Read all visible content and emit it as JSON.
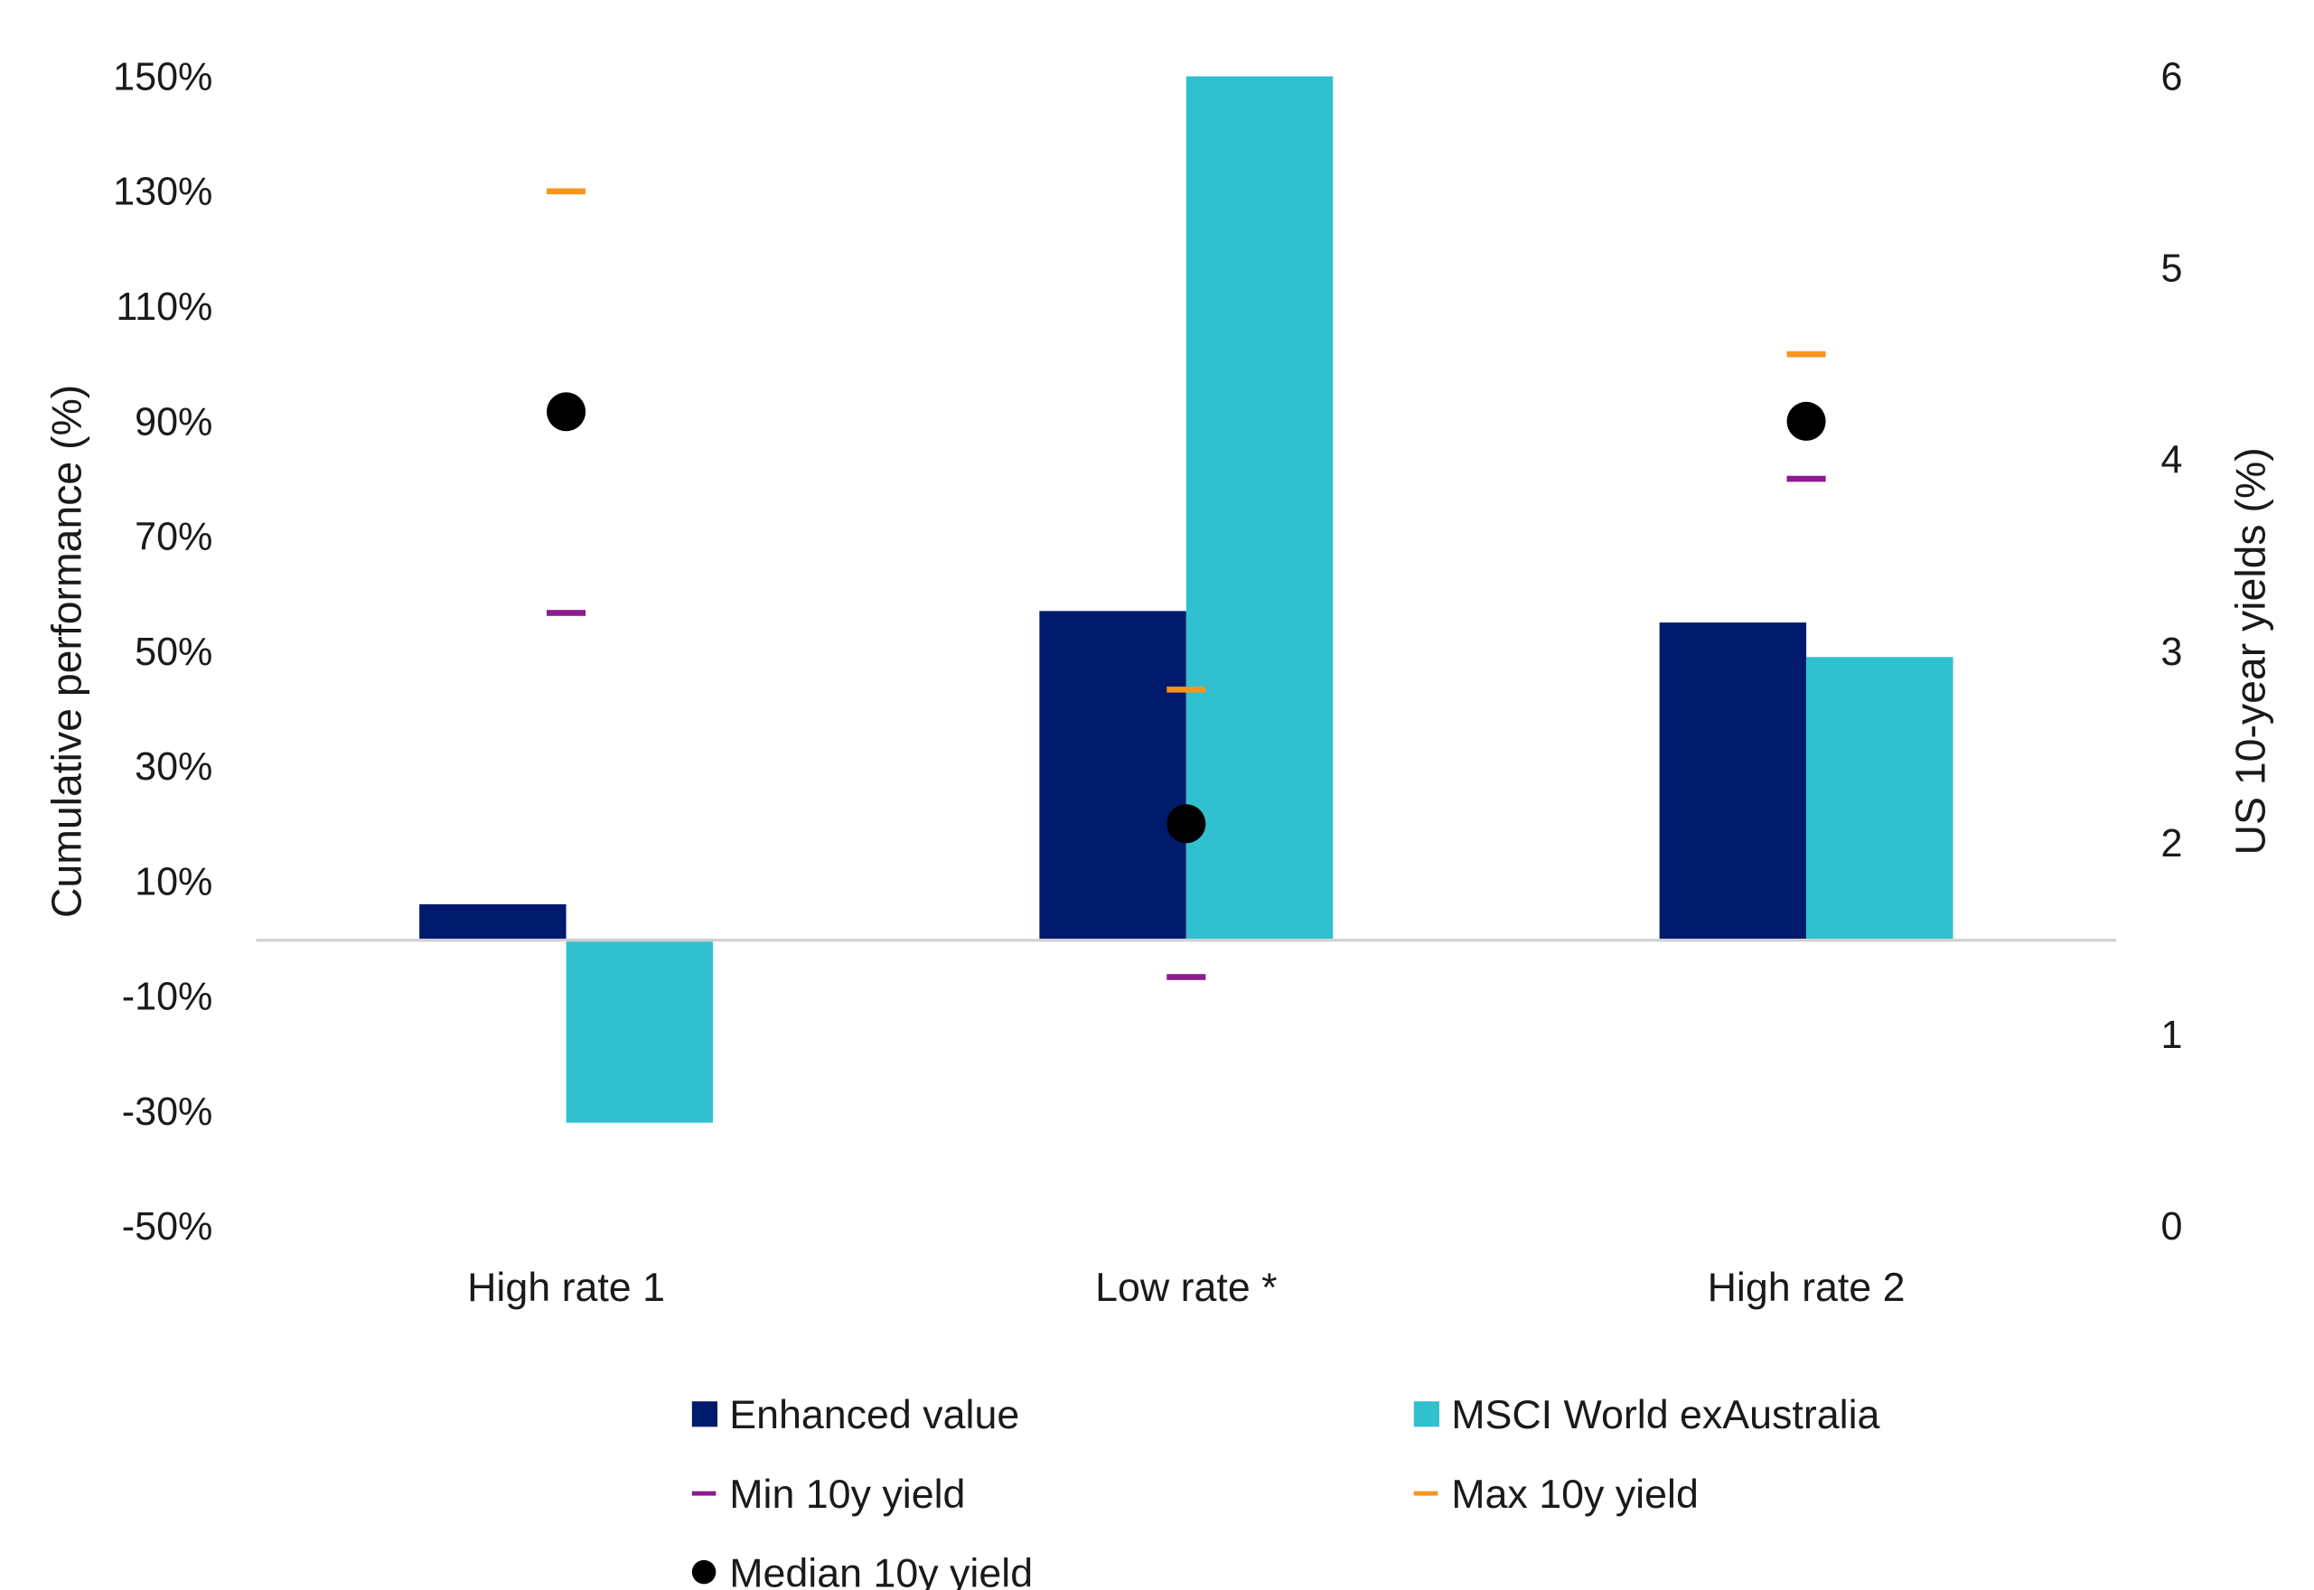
{
  "chart_data": {
    "type": "bar",
    "categories": [
      "High rate 1",
      "Low rate *",
      "High rate 2"
    ],
    "series": [
      {
        "name": "Enhanced value",
        "axis": "left",
        "kind": "bar",
        "color": "#001a6e",
        "values": [
          6,
          57,
          55
        ]
      },
      {
        "name": "MSCI World exAustralia",
        "axis": "left",
        "kind": "bar",
        "color": "#31c0d0",
        "values": [
          -32,
          150,
          49
        ]
      },
      {
        "name": "Min 10y yield",
        "axis": "right",
        "kind": "dash",
        "color": "#8e1a8e",
        "values": [
          3.2,
          1.3,
          3.9
        ]
      },
      {
        "name": "Max 10y yield",
        "axis": "right",
        "kind": "dash",
        "color": "#f7941d",
        "values": [
          5.4,
          2.8,
          4.55
        ]
      },
      {
        "name": "Median 10y yield",
        "axis": "right",
        "kind": "dot",
        "color": "#000000",
        "values": [
          4.25,
          2.1,
          4.2
        ]
      }
    ],
    "ylabel": "Cumulative performance (%)",
    "y2label": "US 10-year yields (%)",
    "ylim": [
      -50,
      150
    ],
    "yticks": [
      "150%",
      "130%",
      "110%",
      "90%",
      "70%",
      "50%",
      "30%",
      "10%",
      "-10%",
      "-30%",
      "-50%"
    ],
    "y2lim": [
      0,
      6
    ],
    "y2ticks": [
      "6",
      "5",
      "4",
      "3",
      "2",
      "1",
      "0"
    ],
    "grid": false,
    "legend_position": "bottom"
  }
}
